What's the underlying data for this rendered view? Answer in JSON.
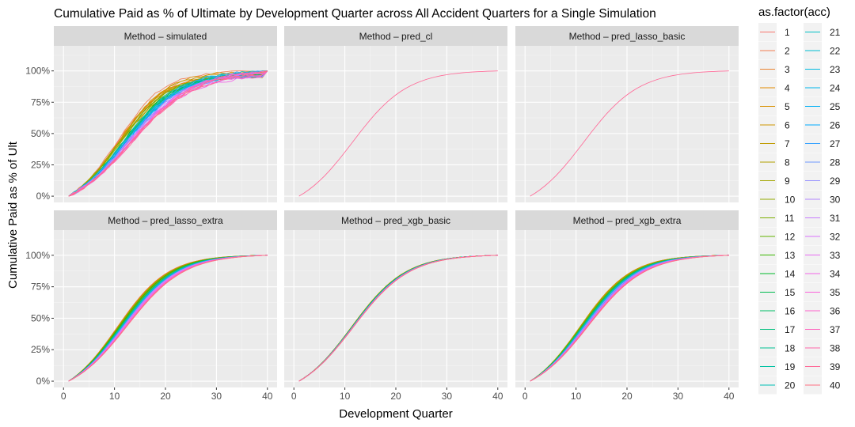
{
  "chart_data": {
    "type": "line",
    "title": "Cumulative Paid as % of Ultimate by Development Quarter across All Accident Quarters for a Single Simulation",
    "xlabel": "Development Quarter",
    "ylabel": "Cumulative Paid as % of Ult",
    "xlim": [
      0,
      40
    ],
    "ylim": [
      0,
      1
    ],
    "x_ticks": [
      "0",
      "10",
      "20",
      "30",
      "40"
    ],
    "y_ticks": [
      "0%",
      "25%",
      "50%",
      "75%",
      "100%"
    ],
    "grid": true,
    "legend": {
      "title": "as.factor(acc)",
      "placement": "right",
      "entries": [
        "1",
        "2",
        "3",
        "4",
        "5",
        "6",
        "7",
        "8",
        "9",
        "10",
        "11",
        "12",
        "13",
        "14",
        "15",
        "16",
        "17",
        "18",
        "19",
        "20",
        "21",
        "22",
        "23",
        "24",
        "25",
        "26",
        "27",
        "28",
        "29",
        "30",
        "31",
        "32",
        "33",
        "34",
        "35",
        "36",
        "37",
        "38",
        "39",
        "40"
      ]
    },
    "facet_prefix": "Method",
    "facet_sep": "–",
    "panels": [
      {
        "method": "simulated",
        "series_count": 40,
        "start_x": 1,
        "shape": "sigmoid",
        "midpoint_range": [
          10.5,
          13.5
        ],
        "spread_range": [
          4.6,
          6.2
        ],
        "final_value_range": [
          0.95,
          1.0
        ]
      },
      {
        "method": "pred_cl",
        "series_count": 1,
        "start_x": 1,
        "shape": "sigmoid",
        "midpoint_range": [
          11.5,
          11.5
        ],
        "spread_range": [
          5.4,
          5.4
        ],
        "final_value_range": [
          1.0,
          1.0
        ]
      },
      {
        "method": "pred_lasso_basic",
        "series_count": 1,
        "start_x": 1,
        "shape": "sigmoid",
        "midpoint_range": [
          11.5,
          11.5
        ],
        "spread_range": [
          5.4,
          5.4
        ],
        "final_value_range": [
          1.0,
          1.0
        ]
      },
      {
        "method": "pred_lasso_extra",
        "series_count": 40,
        "start_x": 1,
        "shape": "sigmoid",
        "midpoint_range": [
          10.5,
          12.5
        ],
        "spread_range": [
          5.0,
          5.6
        ],
        "final_value_range": [
          1.0,
          1.0
        ]
      },
      {
        "method": "pred_xgb_basic",
        "series_count": 40,
        "start_x": 1,
        "shape": "sigmoid",
        "midpoint_range": [
          11.3,
          11.7
        ],
        "spread_range": [
          5.3,
          5.5
        ],
        "final_value_range": [
          1.0,
          1.0
        ]
      },
      {
        "method": "pred_xgb_extra",
        "series_count": 40,
        "start_x": 1,
        "shape": "sigmoid",
        "midpoint_range": [
          10.6,
          12.4
        ],
        "spread_range": [
          5.0,
          5.6
        ],
        "final_value_range": [
          1.0,
          1.0
        ]
      }
    ]
  }
}
